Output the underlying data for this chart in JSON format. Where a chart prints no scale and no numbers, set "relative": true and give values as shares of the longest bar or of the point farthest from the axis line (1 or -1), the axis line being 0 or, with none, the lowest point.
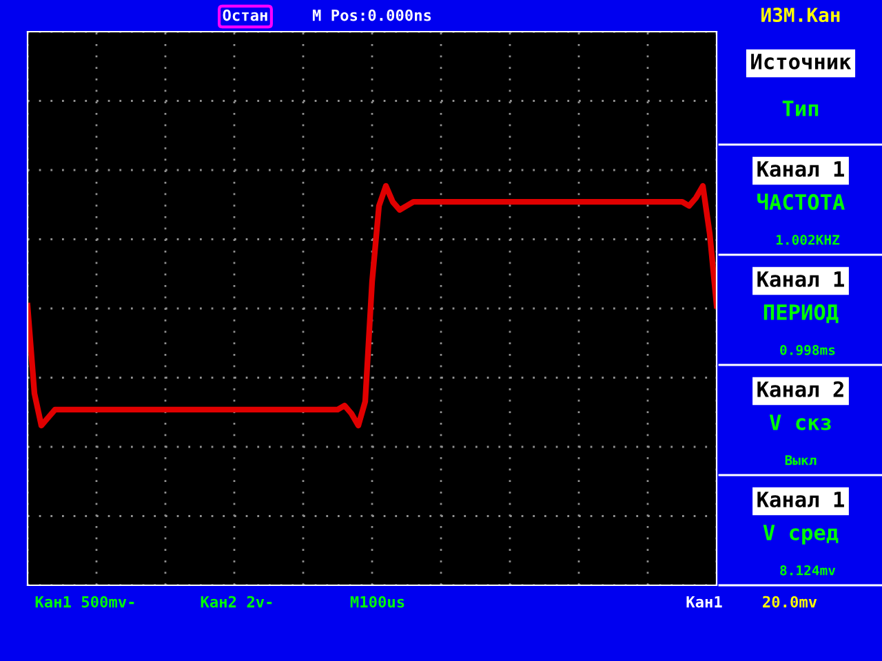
{
  "chart_data": {
    "type": "line",
    "relative": true,
    "grid": true,
    "tick_labels": false,
    "marker": "none",
    "line_style": "solid",
    "categories": [
      null,
      null,
      null,
      null,
      null,
      null,
      null,
      null,
      null,
      null,
      null,
      null,
      null,
      null,
      null,
      null,
      null,
      null,
      null,
      null,
      null,
      null,
      null,
      null,
      null,
      null,
      null,
      null,
      null,
      null,
      null,
      null,
      null,
      null,
      null,
      null,
      null,
      null,
      null,
      null,
      null,
      null,
      null,
      null,
      null,
      null,
      null,
      null,
      null,
      null,
      null,
      null,
      null,
      null,
      null,
      null,
      null,
      null,
      null,
      null,
      null,
      null,
      null,
      null,
      null,
      null,
      null,
      null,
      null,
      null,
      null,
      null,
      null,
      null,
      null,
      null,
      null,
      null,
      null,
      null,
      null,
      null,
      null,
      null,
      null,
      null,
      null,
      null,
      null,
      null,
      null,
      null,
      null,
      null,
      null,
      null,
      null,
      null,
      null,
      null,
      null
    ],
    "series": [
      {
        "color": "#e00000",
        "values": [
          0.7,
          0.48,
          0.4,
          0.42,
          0.44,
          0.44,
          0.44,
          0.44,
          0.44,
          0.44,
          0.44,
          0.44,
          0.44,
          0.44,
          0.44,
          0.44,
          0.44,
          0.44,
          0.44,
          0.44,
          0.44,
          0.44,
          0.44,
          0.44,
          0.44,
          0.44,
          0.44,
          0.44,
          0.44,
          0.44,
          0.44,
          0.44,
          0.44,
          0.44,
          0.44,
          0.44,
          0.44,
          0.44,
          0.44,
          0.44,
          0.44,
          0.44,
          0.44,
          0.44,
          0.44,
          0.44,
          0.45,
          0.43,
          0.4,
          0.46,
          0.76,
          0.95,
          1,
          0.96,
          0.94,
          0.95,
          0.96,
          0.96,
          0.96,
          0.96,
          0.96,
          0.96,
          0.96,
          0.96,
          0.96,
          0.96,
          0.96,
          0.96,
          0.96,
          0.96,
          0.96,
          0.96,
          0.96,
          0.96,
          0.96,
          0.96,
          0.96,
          0.96,
          0.96,
          0.96,
          0.96,
          0.96,
          0.96,
          0.96,
          0.96,
          0.96,
          0.96,
          0.96,
          0.96,
          0.96,
          0.96,
          0.96,
          0.96,
          0.96,
          0.96,
          0.96,
          0.95,
          0.97,
          1,
          0.88,
          0.7
        ]
      }
    ],
    "annotations": [
      "Остан",
      "M Pos:0.000ns",
      "ИЗМ.Кан",
      "Источник",
      "Тип",
      "Канал 1",
      "ЧАСТОТА",
      "1.002KHZ",
      "Канал 1",
      "ПЕРИОД",
      "0.998ms",
      "Канал 2",
      "V скз",
      "Выкл",
      "Канал 1",
      "V сред",
      "8.124mv",
      "Кан1 500mv-",
      "Кан2 2v-",
      "M100us",
      "Кан1",
      "20.0mv"
    ]
  }
}
